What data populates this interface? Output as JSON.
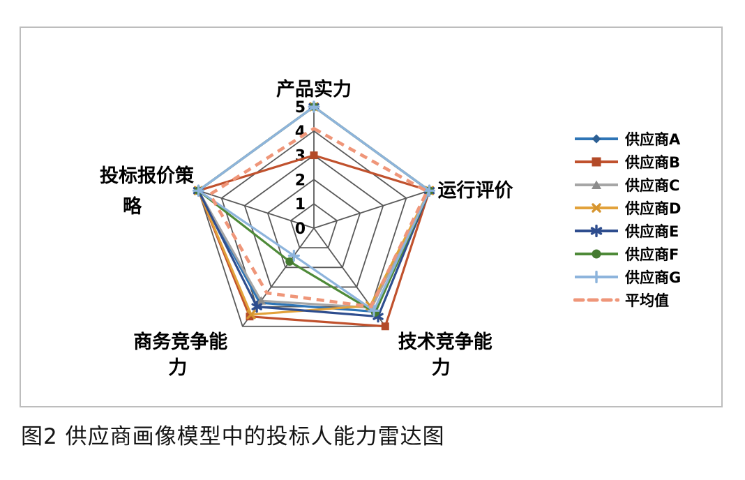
{
  "figure": {
    "caption": "图2  供应商画像模型中的投标人能力雷达图"
  },
  "chart_data": {
    "type": "radar",
    "title": "",
    "categories": [
      "产品实力",
      "运行评价",
      "技术竞争能力",
      "商务竞争能力",
      "投标报价策略"
    ],
    "radial_ticks": [
      0,
      1,
      2,
      3,
      4,
      5
    ],
    "rlim": [
      0,
      5
    ],
    "grid": true,
    "grid_color": "#595959",
    "legend_position": "right",
    "series": [
      {
        "name": "供应商A",
        "values": [
          5,
          5,
          4.25,
          3.8,
          5
        ],
        "color": "#2E75B6",
        "marker": "diamond",
        "marker_color": "#2C5F94",
        "style": "solid"
      },
      {
        "name": "供应商B",
        "values": [
          3,
          5,
          5,
          4.5,
          5
        ],
        "color": "#C0512D",
        "marker": "square",
        "marker_color": "#B34A28",
        "style": "solid"
      },
      {
        "name": "供应商C",
        "values": [
          5,
          5,
          4.05,
          3.7,
          5
        ],
        "color": "#A6A6A6",
        "marker": "triangle",
        "marker_color": "#8C8C8C",
        "style": "solid"
      },
      {
        "name": "供应商D",
        "values": [
          5,
          5,
          3.95,
          4.4,
          5
        ],
        "color": "#E2A23B",
        "marker": "x",
        "marker_color": "#D6952F",
        "style": "solid"
      },
      {
        "name": "供应商E",
        "values": [
          5,
          5,
          4.5,
          4.0,
          5
        ],
        "color": "#2E4D8E",
        "marker": "asterisk",
        "marker_color": "#2E4D8E",
        "style": "solid"
      },
      {
        "name": "供应商F",
        "values": [
          5,
          5,
          4.3,
          1.7,
          5
        ],
        "color": "#4E8A38",
        "marker": "circle",
        "marker_color": "#447A30",
        "style": "solid"
      },
      {
        "name": "供应商G",
        "values": [
          5,
          5,
          4.2,
          1.4,
          5
        ],
        "color": "#8DB4DC",
        "marker": "plus",
        "marker_color": "#8DB4DC",
        "style": "solid"
      },
      {
        "name": "平均值",
        "values": [
          4.1,
          4.9,
          4.0,
          3.3,
          4.5
        ],
        "color": "#EF9679",
        "marker": "none",
        "style": "dashed"
      }
    ]
  }
}
